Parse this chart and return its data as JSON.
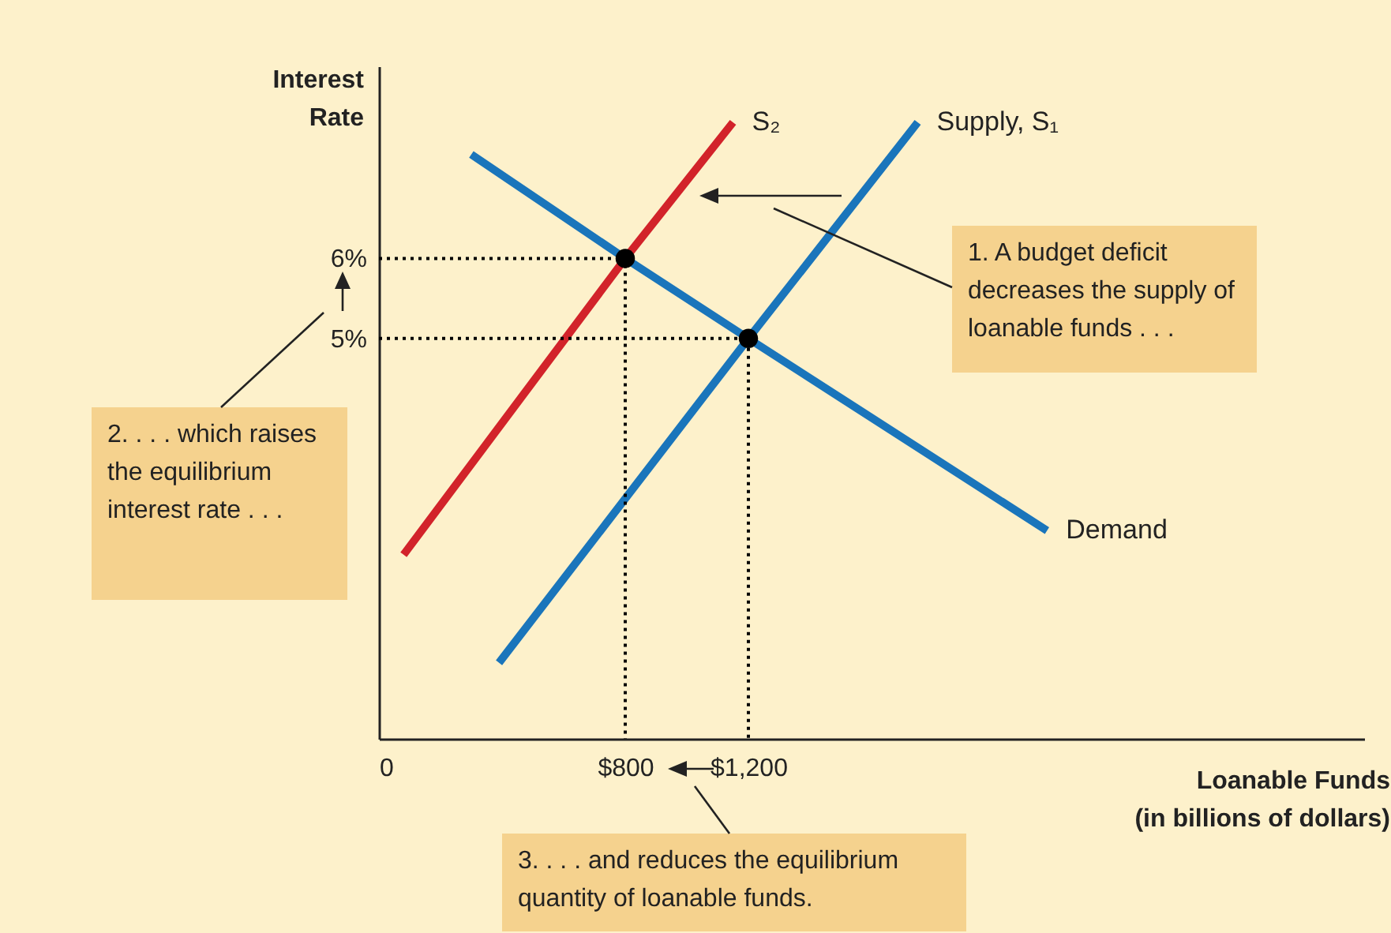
{
  "chart_data": {
    "type": "line",
    "xlabel": "Loanable Funds\n(in billions of dollars)",
    "ylabel": "Interest\nRate",
    "xlim": [
      0,
      3200
    ],
    "ylim": [
      0,
      8.4
    ],
    "xticks": [
      {
        "value": 0,
        "label": "0"
      },
      {
        "value": 800,
        "label": "$800"
      },
      {
        "value": 1200,
        "label": "$1,200"
      }
    ],
    "yticks": [
      {
        "value": 5,
        "label": "5%"
      },
      {
        "value": 6,
        "label": "6%"
      }
    ],
    "grid": false,
    "series": [
      {
        "name": "Demand",
        "color": "#1a75bb",
        "x": [
          300,
          800,
          1200,
          2170
        ],
        "values": [
          7.3,
          6,
          5,
          2.6
        ]
      },
      {
        "name": "Supply, S₁",
        "color": "#1a75bb",
        "x": [
          390,
          1200,
          1750
        ],
        "values": [
          0.95,
          5,
          7.7
        ]
      },
      {
        "name": "S₂",
        "color": "#d2232a",
        "x": [
          80,
          800,
          1150
        ],
        "values": [
          2.3,
          6,
          7.7
        ]
      },
      {
        "color": "#000000",
        "line_style": "dotted",
        "x": [
          0,
          800,
          800
        ],
        "values": [
          6,
          6,
          0
        ]
      },
      {
        "color": "#000000",
        "line_style": "dotted",
        "x": [
          0,
          1200,
          1200
        ],
        "values": [
          5,
          5,
          0
        ]
      },
      {
        "type": "scatter",
        "color": "#000000",
        "marker": "circle",
        "x": [
          800,
          1200
        ],
        "values": [
          6,
          5
        ]
      }
    ],
    "annotations": [
      "1. A budget deficit decreases the supply of loanable funds . . .",
      "2. . . . which raises the equilibrium interest rate . . .",
      "3. . . . and reduces the equilibrium quantity of loanable funds."
    ]
  }
}
